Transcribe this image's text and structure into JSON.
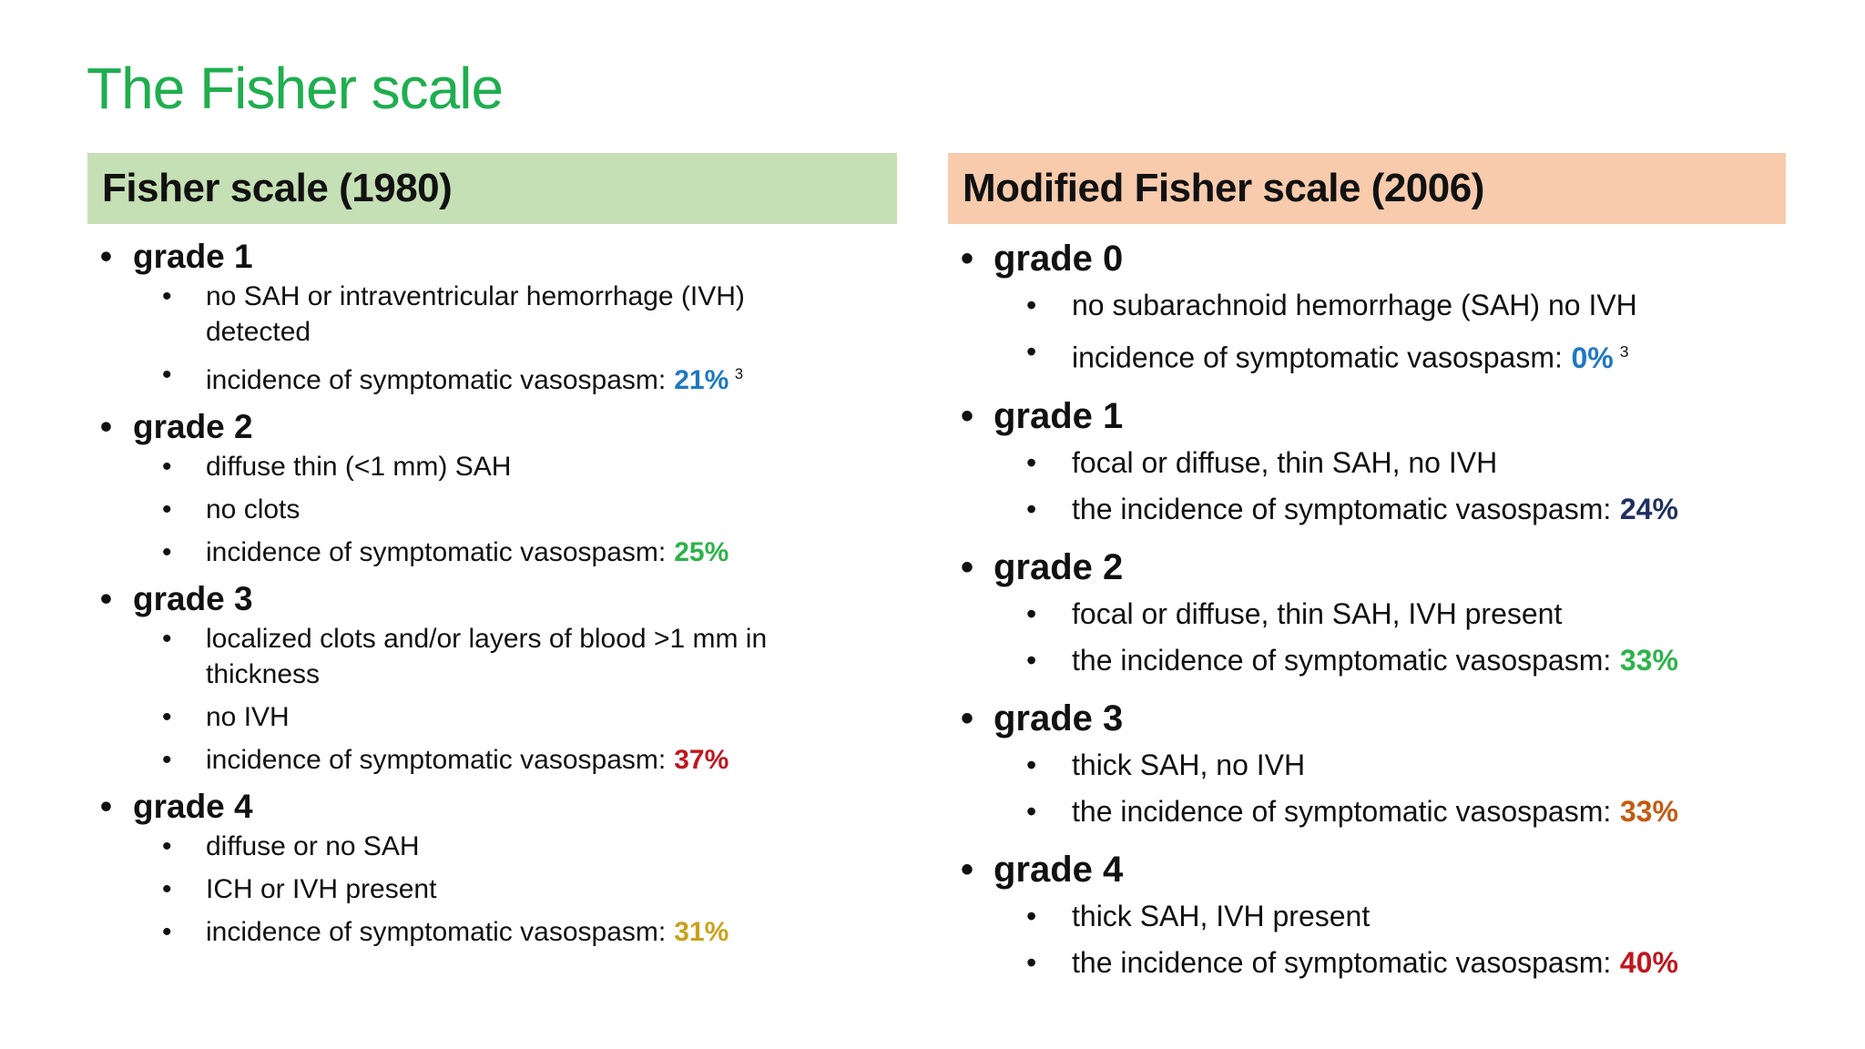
{
  "title": "The Fisher scale",
  "title_color": "#1fae4f",
  "columns": [
    {
      "heading": "Fisher scale (1980)",
      "color": "#c5e0b4",
      "grades": [
        {
          "label": "grade 1",
          "items": [
            {
              "text": "no SAH or intraventricular hemorrhage (IVH) detected"
            },
            {
              "text": "incidence of symptomatic vasospasm:",
              "highlight": "21%",
              "highlight_color": "#1e78c2",
              "footnote": "3"
            }
          ]
        },
        {
          "label": "grade 2",
          "items": [
            {
              "text": "diffuse thin (<1 mm) SAH"
            },
            {
              "text": "no clots"
            },
            {
              "text": "incidence of symptomatic vasospasm:",
              "highlight": "25%",
              "highlight_color": "#2db34a"
            }
          ]
        },
        {
          "label": "grade 3",
          "items": [
            {
              "text": "localized clots and/or layers of blood >1 mm in thickness"
            },
            {
              "text": "no IVH"
            },
            {
              "text": "incidence of symptomatic vasospasm:",
              "highlight": "37%",
              "highlight_color": "#c0161f"
            }
          ]
        },
        {
          "label": "grade 4",
          "items": [
            {
              "text": "diffuse or no SAH"
            },
            {
              "text": "ICH or IVH present"
            },
            {
              "text": "incidence of symptomatic vasospasm:",
              "highlight": "31%",
              "highlight_color": "#c9a21a"
            }
          ]
        }
      ]
    },
    {
      "heading": "Modified Fisher scale (2006)",
      "color": "#f8cbad",
      "grades": [
        {
          "label": "grade 0",
          "items": [
            {
              "text": "no subarachnoid hemorrhage (SAH) no IVH"
            },
            {
              "text": "incidence of symptomatic vasospasm:",
              "highlight": "0%",
              "highlight_color": "#1e78c2",
              "footnote": "3"
            }
          ]
        },
        {
          "label": "grade 1",
          "items": [
            {
              "text": "focal or diffuse, thin SAH, no IVH"
            },
            {
              "text": "the incidence of symptomatic vasospasm:",
              "highlight": "24%",
              "highlight_color": "#1f2f5f"
            }
          ]
        },
        {
          "label": "grade 2",
          "items": [
            {
              "text": "focal or diffuse, thin SAH, IVH present"
            },
            {
              "text": "the incidence of symptomatic vasospasm:",
              "highlight": "33%",
              "highlight_color": "#2db34a"
            }
          ]
        },
        {
          "label": "grade 3",
          "items": [
            {
              "text": "thick SAH, no IVH"
            },
            {
              "text": "the incidence of symptomatic vasospasm:",
              "highlight": "33%",
              "highlight_color": "#c55a11"
            }
          ]
        },
        {
          "label": "grade 4",
          "items": [
            {
              "text": "thick SAH, IVH present"
            },
            {
              "text": "the incidence of symptomatic vasospasm:",
              "highlight": "40%",
              "highlight_color": "#c0161f"
            }
          ]
        }
      ]
    }
  ]
}
